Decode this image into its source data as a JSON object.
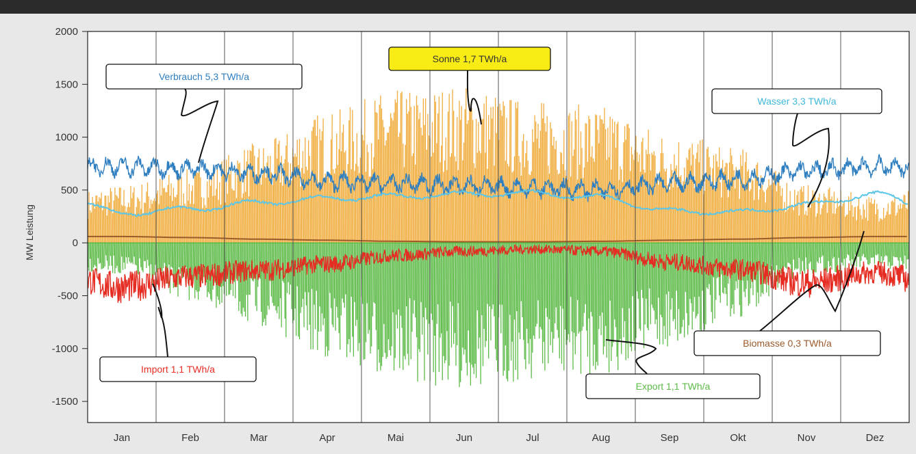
{
  "chart_data": {
    "type": "line",
    "ylabel": "MW Leistung",
    "ylim": [
      -1700,
      2000
    ],
    "yticks": [
      2000,
      1500,
      1000,
      500,
      0,
      -500,
      -1000,
      -1500
    ],
    "months": [
      "Jan",
      "Feb",
      "Mar",
      "Apr",
      "Mai",
      "Jun",
      "Jul",
      "Aug",
      "Sep",
      "Okt",
      "Nov",
      "Dez"
    ],
    "grid": "vertical month separators",
    "series": [
      {
        "name": "Verbrauch 5,3 TWh/a",
        "color": "#2f7fc0",
        "monthly_values": [
          720,
          700,
          660,
          580,
          560,
          540,
          520,
          500,
          560,
          600,
          680,
          720
        ]
      },
      {
        "name": "Sonne 1,7 TWh/a",
        "color": "#f0ac3c",
        "monthly_peak": [
          550,
          700,
          950,
          1250,
          1450,
          1500,
          1350,
          1300,
          1050,
          900,
          550,
          450
        ]
      },
      {
        "name": "Wasser 3,3 TWh/a",
        "color": "#5bc6e8",
        "monthly_values": [
          280,
          320,
          380,
          420,
          440,
          460,
          470,
          430,
          300,
          290,
          360,
          460
        ]
      },
      {
        "name": "Import 1,1 TWh/a",
        "color": "#e52d23",
        "monthly_values": [
          -420,
          -320,
          -260,
          -200,
          -120,
          -80,
          -60,
          -80,
          -180,
          -250,
          -380,
          -280
        ]
      },
      {
        "name": "Export 1,1 TWh/a",
        "color": "#5cba47",
        "monthly_peak": [
          -300,
          -550,
          -800,
          -1100,
          -1300,
          -1400,
          -1300,
          -1250,
          -1000,
          -700,
          -300,
          -250
        ]
      },
      {
        "name": "Biomasse 0,3 TWh/a",
        "color": "#9a5a2a",
        "monthly_values": [
          60,
          50,
          35,
          25,
          15,
          10,
          10,
          15,
          25,
          35,
          50,
          60
        ]
      }
    ]
  },
  "callouts": [
    {
      "label": "Verbrauch 5,3 TWh/a",
      "text_color": "#2f7fc0",
      "bg": "#ffffff"
    },
    {
      "label": "Sonne 1,7 TWh/a",
      "text_color": "#333333",
      "bg": "#f8ec14"
    },
    {
      "label": "Wasser 3,3 TWh/a",
      "text_color": "#3fb8d8",
      "bg": "#ffffff"
    },
    {
      "label": "Biomasse 0,3 TWh/a",
      "text_color": "#9a5a2a",
      "bg": "#ffffff"
    },
    {
      "label": "Import 1,1 TWh/a",
      "text_color": "#e52d23",
      "bg": "#ffffff"
    },
    {
      "label": "Export 1,1 TWh/a",
      "text_color": "#5cba47",
      "bg": "#ffffff"
    }
  ]
}
